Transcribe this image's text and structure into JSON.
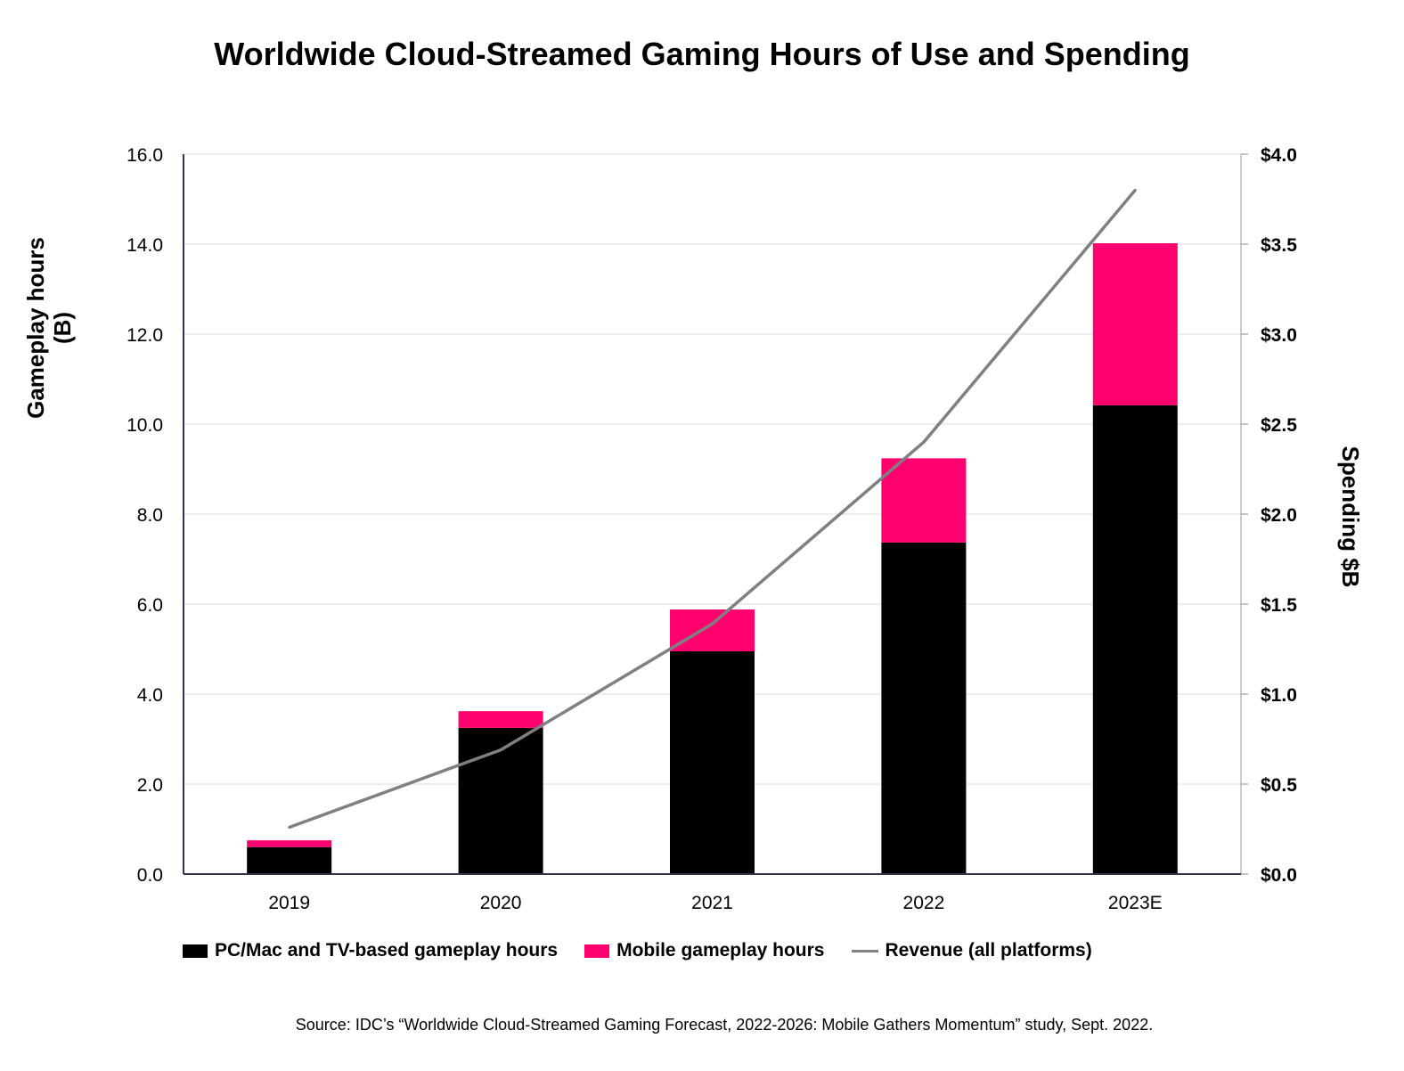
{
  "chart_data": {
    "type": "bar",
    "title": "Worldwide Cloud-Streamed Gaming Hours of Use and Spending",
    "categories": [
      "2019",
      "2020",
      "2021",
      "2022",
      "2023E"
    ],
    "series": [
      {
        "name": "PC/Mac and TV-based gameplay hours",
        "type": "bar",
        "stack": "hours",
        "axis": "left",
        "color": "#000000",
        "values": [
          0.6,
          3.25,
          4.95,
          7.37,
          10.42
        ]
      },
      {
        "name": "Mobile gameplay hours",
        "type": "bar",
        "stack": "hours",
        "axis": "left",
        "color": "#ff006e",
        "values": [
          0.15,
          0.37,
          0.93,
          1.87,
          3.6
        ]
      },
      {
        "name": "Revenue (all platforms)",
        "type": "line",
        "axis": "right",
        "color": "#808080",
        "values": [
          0.26,
          0.69,
          1.39,
          2.4,
          3.8
        ]
      }
    ],
    "ylabel": "Gameplay hours (B)",
    "ylabel_lines": [
      "Gameplay hours",
      "(B)"
    ],
    "y2label": "Spending $B",
    "ylim": [
      0,
      16
    ],
    "y2lim": [
      0,
      4
    ],
    "yticks": [
      "0.0",
      "2.0",
      "4.0",
      "6.0",
      "8.0",
      "10.0",
      "12.0",
      "14.0",
      "16.0"
    ],
    "y2ticks": [
      "$0.0",
      "$0.5",
      "$1.0",
      "$1.5",
      "$2.0",
      "$2.5",
      "$3.0",
      "$3.5",
      "$4.0"
    ],
    "grid": true,
    "legend": "bottom"
  },
  "source": "Source: IDC’s “Worldwide Cloud-Streamed Gaming Forecast, 2022-2026: Mobile Gathers Momentum” study,  Sept. 2022."
}
